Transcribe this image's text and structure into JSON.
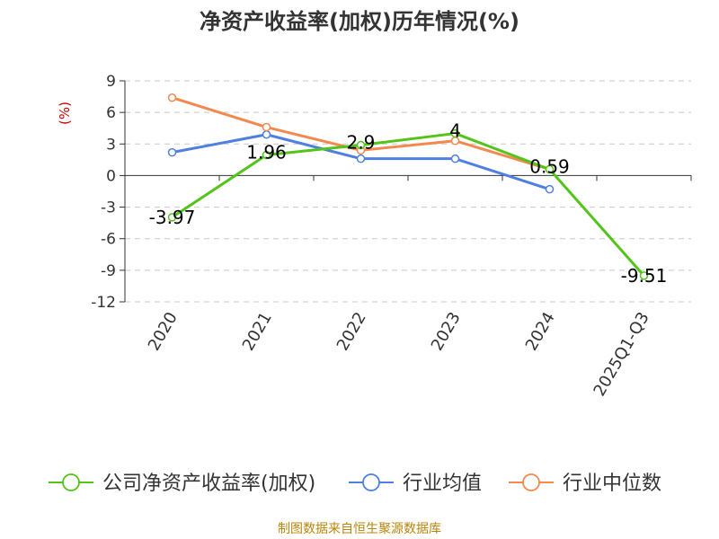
{
  "colors": {
    "company": "#52c41a",
    "industry_avg": "#4f7fdf",
    "industry_median": "#f4894f",
    "grid": "#c8c8c8",
    "axis": "#333333",
    "unit": "#cc0000",
    "source": "#b8860b"
  },
  "chart_data": {
    "type": "line",
    "title": "净资产收益率(加权)历年情况(%)",
    "ylabel": "(%)",
    "xlabel": "",
    "categories": [
      "2020",
      "2021",
      "2022",
      "2023",
      "2024",
      "2025Q1-Q3"
    ],
    "ylim": [
      -12,
      9
    ],
    "yticks": [
      9,
      6,
      3,
      0,
      -3,
      -6,
      -9,
      -12
    ],
    "grid": true,
    "legend_position": "bottom",
    "series": [
      {
        "name": "公司净资产收益率(加权)",
        "values": [
          -3.97,
          1.96,
          2.9,
          4,
          0.59,
          -9.51
        ],
        "labels": [
          "-3.97",
          "1.96",
          "2.9",
          "4",
          "0.59",
          "-9.51"
        ]
      },
      {
        "name": "行业均值",
        "values": [
          2.2,
          3.9,
          1.6,
          1.6,
          -1.3,
          null
        ]
      },
      {
        "name": "行业中位数",
        "values": [
          7.4,
          4.6,
          2.4,
          3.3,
          0.6,
          null
        ]
      }
    ]
  },
  "footer": {
    "source": "制图数据来自恒生聚源数据库"
  }
}
